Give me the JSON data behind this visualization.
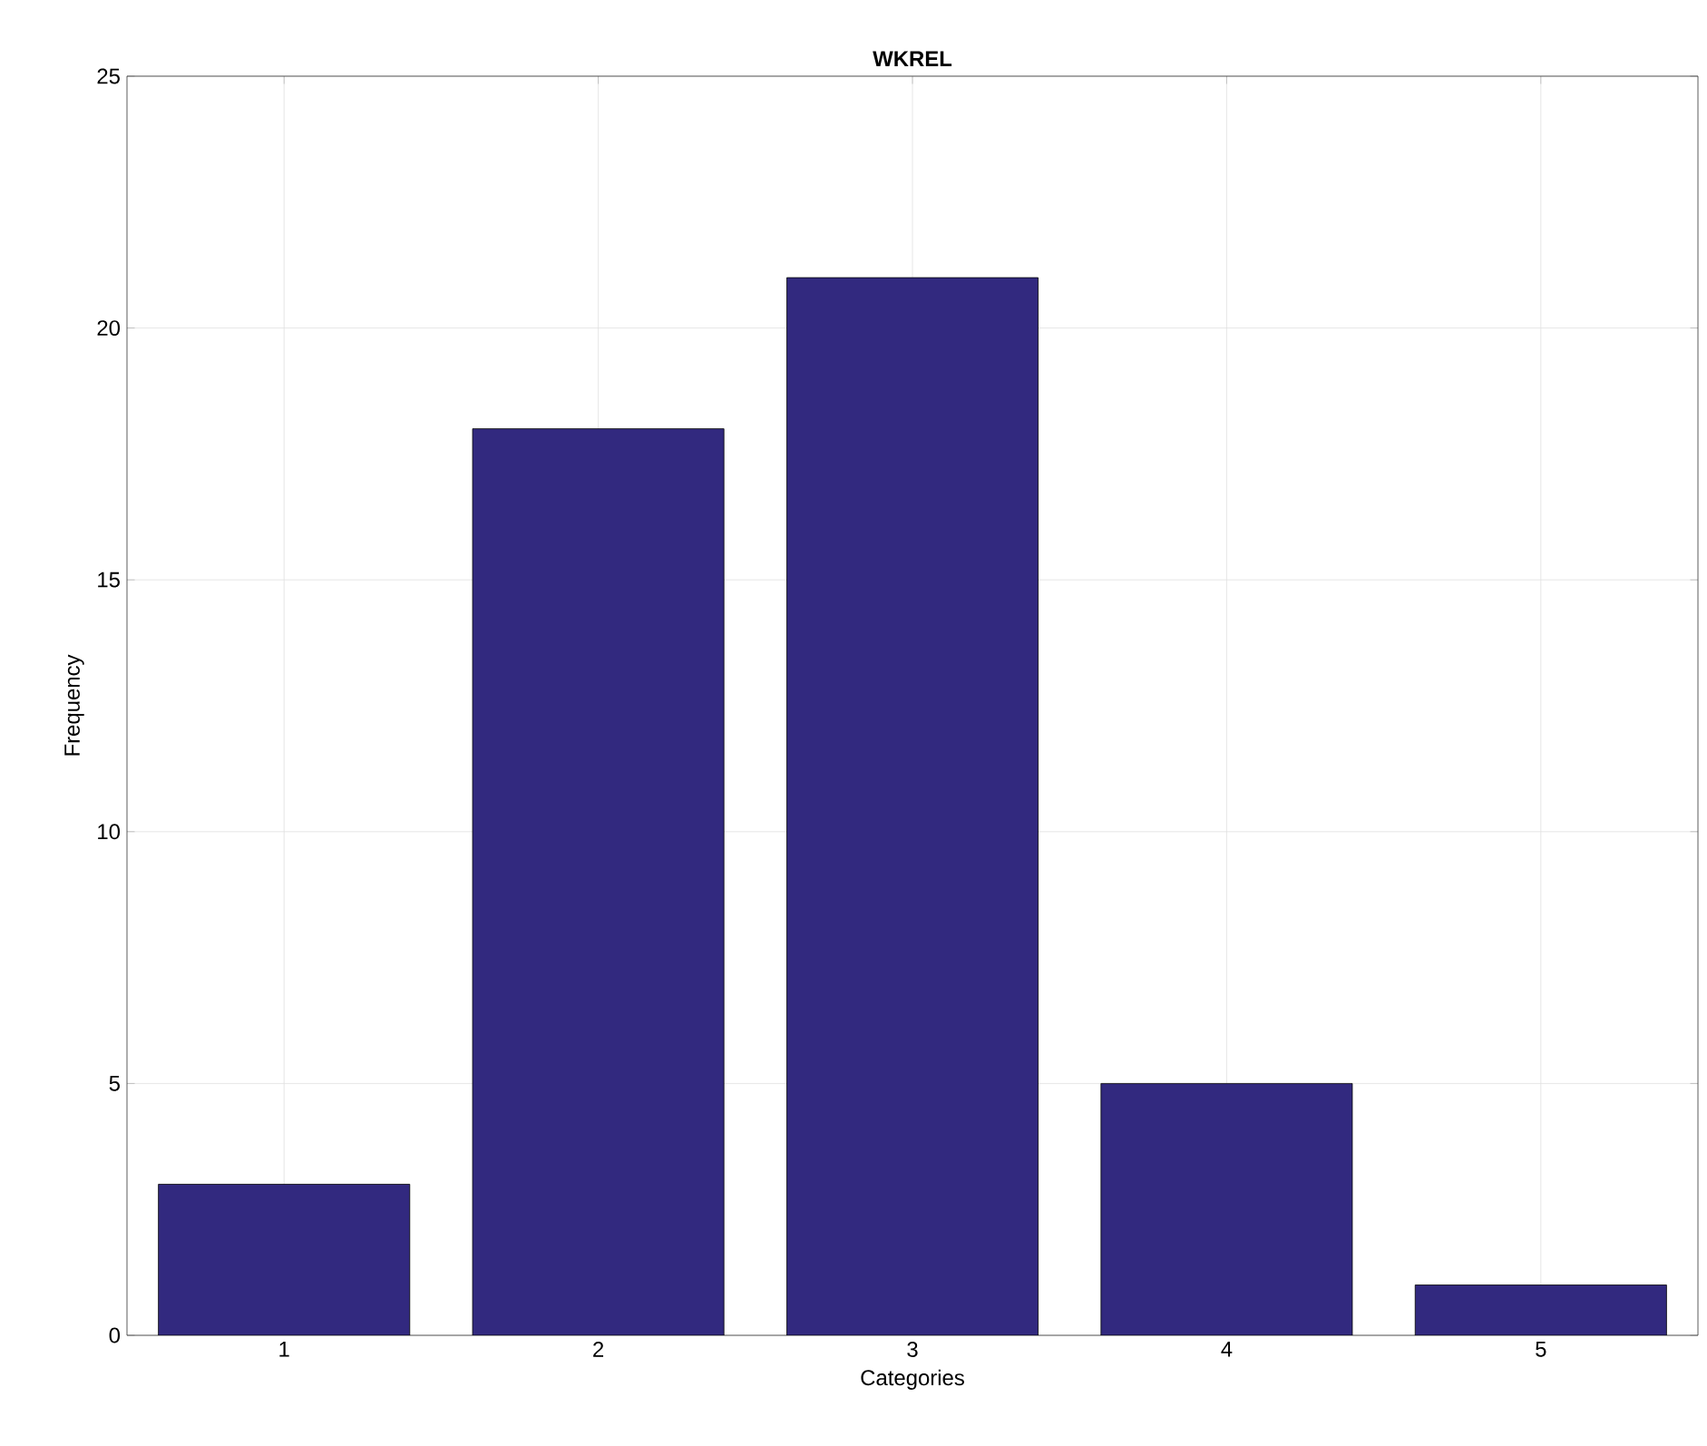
{
  "chart_data": {
    "type": "bar",
    "title": "WKREL",
    "xlabel": "Categories",
    "ylabel": "Frequency",
    "categories": [
      "1",
      "2",
      "3",
      "4",
      "5"
    ],
    "values": [
      3,
      18,
      21,
      5,
      1
    ],
    "color": "#32297f",
    "ylim": [
      0,
      25
    ],
    "yticks": [
      0,
      5,
      10,
      15,
      20,
      25
    ],
    "grid": true
  }
}
